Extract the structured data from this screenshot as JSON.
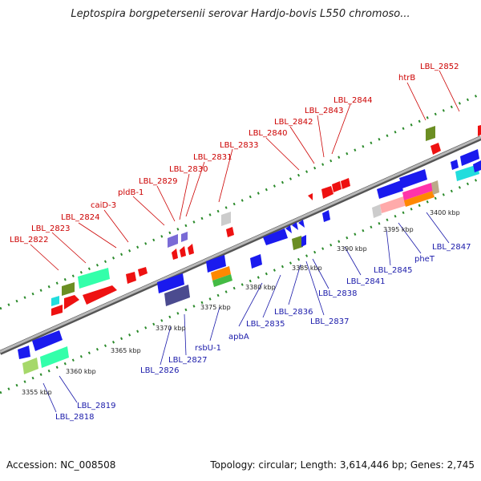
{
  "title": "Leptospira borgpetersenii serovar Hardjo-bovis L550 chromoso...",
  "accession": "Accession: NC_008508",
  "topology": "Topology: circular; Length: 3,614,446 bp; Genes: 2,745",
  "colors": {
    "backbone": "#8a8a8a",
    "forward_label": "#cc0000",
    "reverse_label": "#1a1aaa",
    "forward_gene": "#ee1111",
    "reverse_gene": "#1a1aee",
    "dots": "#2a8a2a"
  },
  "ticks": [
    "3355 kbp",
    "3360 kbp",
    "3365 kbp",
    "3370 kbp",
    "3375 kbp",
    "3380 kbp",
    "3385 kbp",
    "3390 kbp",
    "3395 kbp",
    "3400 kbp"
  ],
  "forward_labels": [
    "LBL_2822",
    "LBL_2823",
    "LBL_2824",
    "caiD-3",
    "pldB-1",
    "LBL_2829",
    "LBL_2830",
    "LBL_2831",
    "LBL_2833",
    "LBL_2840",
    "LBL_2842",
    "LBL_2843",
    "LBL_2844",
    "htrB",
    "LBL_2852"
  ],
  "reverse_labels": [
    "LBL_2818",
    "LBL_2819",
    "LBL_2826",
    "LBL_2827",
    "rsbU-1",
    "apbA",
    "LBL_2835",
    "LBL_2836",
    "LBL_2837",
    "LBL_2838",
    "LBL_2841",
    "LBL_2845",
    "pheT",
    "LBL_2847"
  ]
}
